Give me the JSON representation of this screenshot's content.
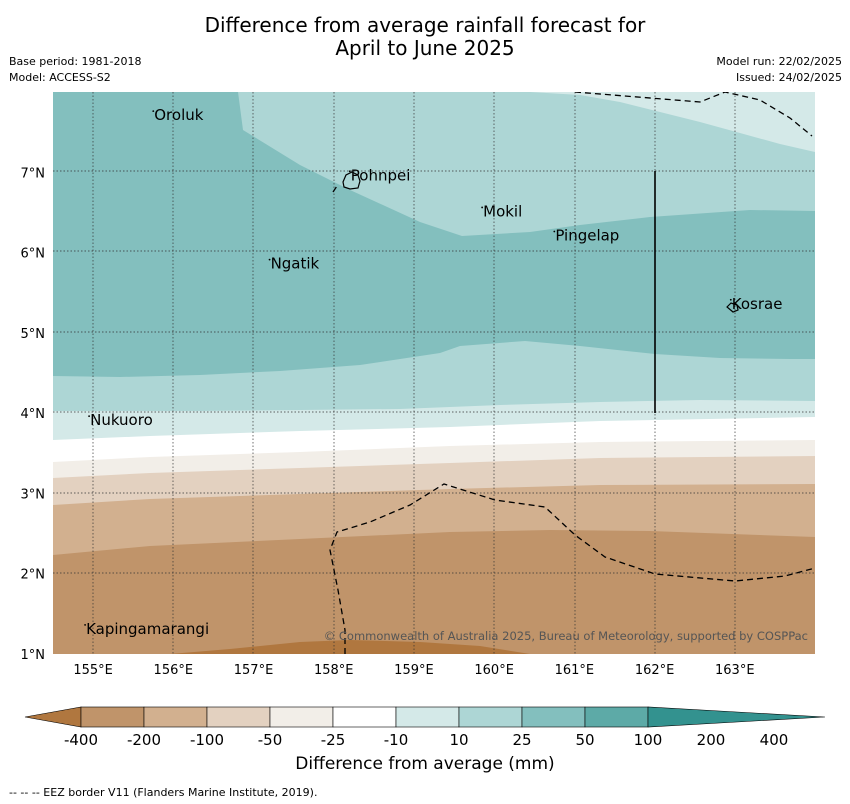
{
  "title_line1": "Difference from average rainfall forecast for",
  "title_line2": "April to June 2025",
  "meta_left": [
    "Base period: 1981-2018",
    "Model: ACCESS-S2"
  ],
  "meta_right": [
    "Model run: 22/02/2025",
    "Issued: 24/02/2025"
  ],
  "copyright": "© Commonwealth of Australia 2025, Bureau of Meteorology, supported by COSPPac",
  "map": {
    "lon_range": [
      154.5,
      164.0
    ],
    "lat_range": [
      1.0,
      8.0
    ],
    "lon_ticks": [
      {
        "value": 155,
        "label": "155°E"
      },
      {
        "value": 156,
        "label": "156°E"
      },
      {
        "value": 157,
        "label": "157°E"
      },
      {
        "value": 158,
        "label": "158°E"
      },
      {
        "value": 159,
        "label": "159°E"
      },
      {
        "value": 160,
        "label": "160°E"
      },
      {
        "value": 161,
        "label": "161°E"
      },
      {
        "value": 162,
        "label": "162°E"
      },
      {
        "value": 163,
        "label": "163°E"
      }
    ],
    "lat_ticks": [
      {
        "value": 7,
        "label": "7°N"
      },
      {
        "value": 6,
        "label": "6°N"
      },
      {
        "value": 5,
        "label": "5°N"
      },
      {
        "value": 4,
        "label": "4°N"
      },
      {
        "value": 3,
        "label": "3°N"
      },
      {
        "value": 2,
        "label": "2°N"
      },
      {
        "value": 1,
        "label": "1°N"
      }
    ],
    "places": [
      {
        "name": "Oroluk",
        "lon": 155.75,
        "lat": 7.65
      },
      {
        "name": "Pohnpei",
        "lon": 158.2,
        "lat": 6.9
      },
      {
        "name": "Mokil",
        "lon": 159.85,
        "lat": 6.45
      },
      {
        "name": "Pingelap",
        "lon": 160.75,
        "lat": 6.15
      },
      {
        "name": "Ngatik",
        "lon": 157.2,
        "lat": 5.8
      },
      {
        "name": "Kosrae",
        "lon": 162.95,
        "lat": 5.3
      },
      {
        "name": "Nukuoro",
        "lon": 154.95,
        "lat": 3.85
      },
      {
        "name": "Kapingamarangi",
        "lon": 154.9,
        "lat": 1.25
      }
    ],
    "colors": {
      "c100_200": "#5daaa7",
      "c50_100": "#83bfbe",
      "c25_50": "#add6d5",
      "c10_25": "#d4e9e8",
      "cm10_10": "#ffffff",
      "cm25_m10": "#f2eee8",
      "cm50_m25": "#e3d1c0",
      "cm100_m50": "#d2b08f",
      "cm200_m100": "#c0946a",
      "cm400_m200": "#b0773f"
    }
  },
  "colorbar": {
    "colors": [
      "#b0773f",
      "#c0946a",
      "#d2b08f",
      "#e3d1c0",
      "#f2eee8",
      "#ffffff",
      "#d4e9e8",
      "#add6d5",
      "#83bfbe",
      "#5daaa7",
      "#33928f"
    ],
    "labels": [
      "-400",
      "-200",
      "-100",
      "-50",
      "-25",
      "-10",
      "10",
      "25",
      "50",
      "100",
      "200",
      "400"
    ],
    "title": "Difference from average (mm)"
  },
  "footnote": "--  --  -- EEZ border V11 (Flanders Marine Institute, 2019)."
}
